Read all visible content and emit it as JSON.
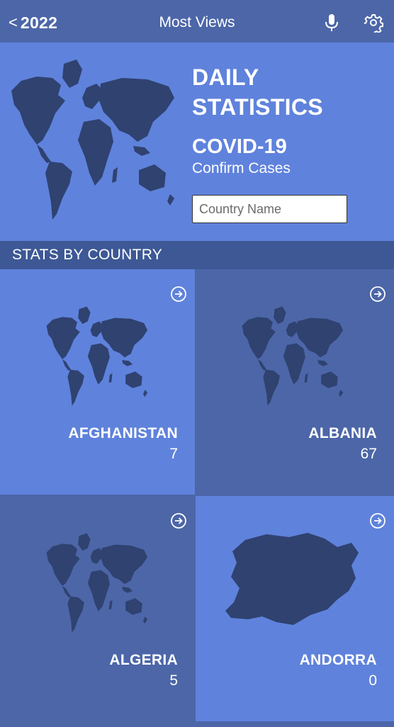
{
  "nav": {
    "back_label": "2022",
    "title": "Most Views",
    "icons": {
      "mic": "microphone-icon",
      "settings": "gear-icon",
      "back": "chevron-left-icon"
    }
  },
  "hero": {
    "title_line1": "DAILY",
    "title_line2": "STATISTICS",
    "subtitle": "COVID-19",
    "caption": "Confirm Cases",
    "search_placeholder": "Country Name"
  },
  "section": {
    "title": "STATS BY COUNTRY"
  },
  "countries": [
    {
      "name": "AFGHANISTAN",
      "value": "7",
      "shade": "light",
      "map": "world"
    },
    {
      "name": "ALBANIA",
      "value": "67",
      "shade": "dark",
      "map": "world"
    },
    {
      "name": "ALGERIA",
      "value": "5",
      "shade": "dark",
      "map": "world"
    },
    {
      "name": "ANDORRA",
      "value": "0",
      "shade": "light",
      "map": "andorra"
    }
  ],
  "colors": {
    "navbar": "#4c66a8",
    "hero": "#5f82dc",
    "section": "#3d5895",
    "tile_light": "#5f82dc",
    "tile_dark": "#4c66a8",
    "map_fill": "#2f4270"
  }
}
